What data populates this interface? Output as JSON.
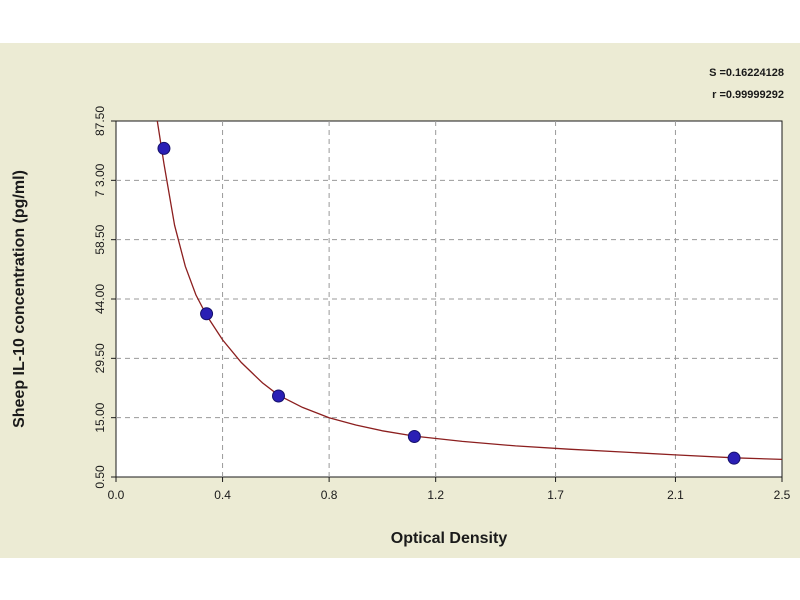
{
  "chart_data": {
    "type": "scatter",
    "title": "",
    "xlabel": "Optical Density",
    "ylabel": "Sheep IL-10 concentration (pg/ml)",
    "xlim": [
      0.0,
      2.5
    ],
    "ylim": [
      0.5,
      87.5
    ],
    "x_ticks": [
      {
        "value": 0.0,
        "label": "0.0"
      },
      {
        "value": 0.4,
        "label": "0.4"
      },
      {
        "value": 0.8,
        "label": "0.8"
      },
      {
        "value": 1.2,
        "label": "1.2"
      },
      {
        "value": 1.65,
        "label": "1.7"
      },
      {
        "value": 2.1,
        "label": "2.1"
      },
      {
        "value": 2.5,
        "label": "2.5"
      }
    ],
    "y_ticks": [
      {
        "value": 0.5,
        "label": "0.50"
      },
      {
        "value": 15.0,
        "label": "15.00"
      },
      {
        "value": 29.5,
        "label": "29.50"
      },
      {
        "value": 44.0,
        "label": "44.00"
      },
      {
        "value": 58.5,
        "label": "58.50"
      },
      {
        "value": 73.0,
        "label": "7 3.00"
      },
      {
        "value": 87.5,
        "label": "87.50"
      }
    ],
    "grid": true,
    "series": [
      {
        "points": [
          {
            "x": 0.18,
            "y": 80.8
          },
          {
            "x": 0.34,
            "y": 40.4
          },
          {
            "x": 0.61,
            "y": 20.3
          },
          {
            "x": 1.12,
            "y": 10.4
          },
          {
            "x": 2.32,
            "y": 5.1
          }
        ],
        "fit_curve": [
          {
            "x": 0.155,
            "y": 87.5
          },
          {
            "x": 0.18,
            "y": 77.0
          },
          {
            "x": 0.22,
            "y": 62.0
          },
          {
            "x": 0.26,
            "y": 52.0
          },
          {
            "x": 0.3,
            "y": 45.0
          },
          {
            "x": 0.34,
            "y": 40.0
          },
          {
            "x": 0.4,
            "y": 34.0
          },
          {
            "x": 0.47,
            "y": 28.5
          },
          {
            "x": 0.55,
            "y": 23.5
          },
          {
            "x": 0.61,
            "y": 20.5
          },
          {
            "x": 0.7,
            "y": 17.5
          },
          {
            "x": 0.8,
            "y": 15.0
          },
          {
            "x": 0.9,
            "y": 13.2
          },
          {
            "x": 1.0,
            "y": 11.8
          },
          {
            "x": 1.12,
            "y": 10.5
          },
          {
            "x": 1.3,
            "y": 9.2
          },
          {
            "x": 1.5,
            "y": 8.1
          },
          {
            "x": 1.7,
            "y": 7.3
          },
          {
            "x": 1.9,
            "y": 6.6
          },
          {
            "x": 2.1,
            "y": 5.9
          },
          {
            "x": 2.32,
            "y": 5.2
          },
          {
            "x": 2.5,
            "y": 4.8
          }
        ]
      }
    ],
    "colors": {
      "marker": "#2a1fb5",
      "curve": "#8c1f1f",
      "grid": "#9a9a9a",
      "plot_bg": "#ffffff",
      "frame_bg": "#ecebd4"
    },
    "annotations": [
      {
        "text": "S =0.16224128"
      },
      {
        "text": "r =0.99999292"
      }
    ]
  }
}
